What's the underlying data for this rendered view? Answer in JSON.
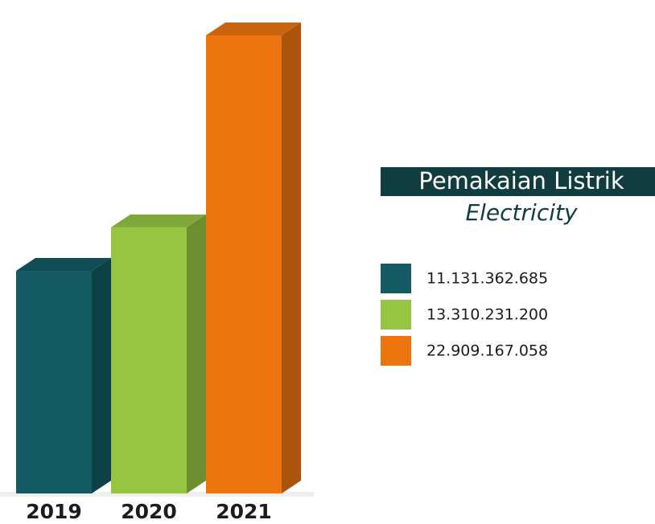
{
  "chart_data": {
    "type": "bar3d",
    "title": "Pemakaian Listrik",
    "subtitle": "Electricity",
    "categories": [
      "2019",
      "2020",
      "2021"
    ],
    "values": [
      11131362685,
      13310231200,
      22909167058
    ],
    "value_labels": [
      "11.131.362.685",
      "13.310.231.200",
      "22.909.167.058"
    ],
    "colors": [
      "#135a63",
      "#96c443",
      "#ee7410"
    ]
  }
}
